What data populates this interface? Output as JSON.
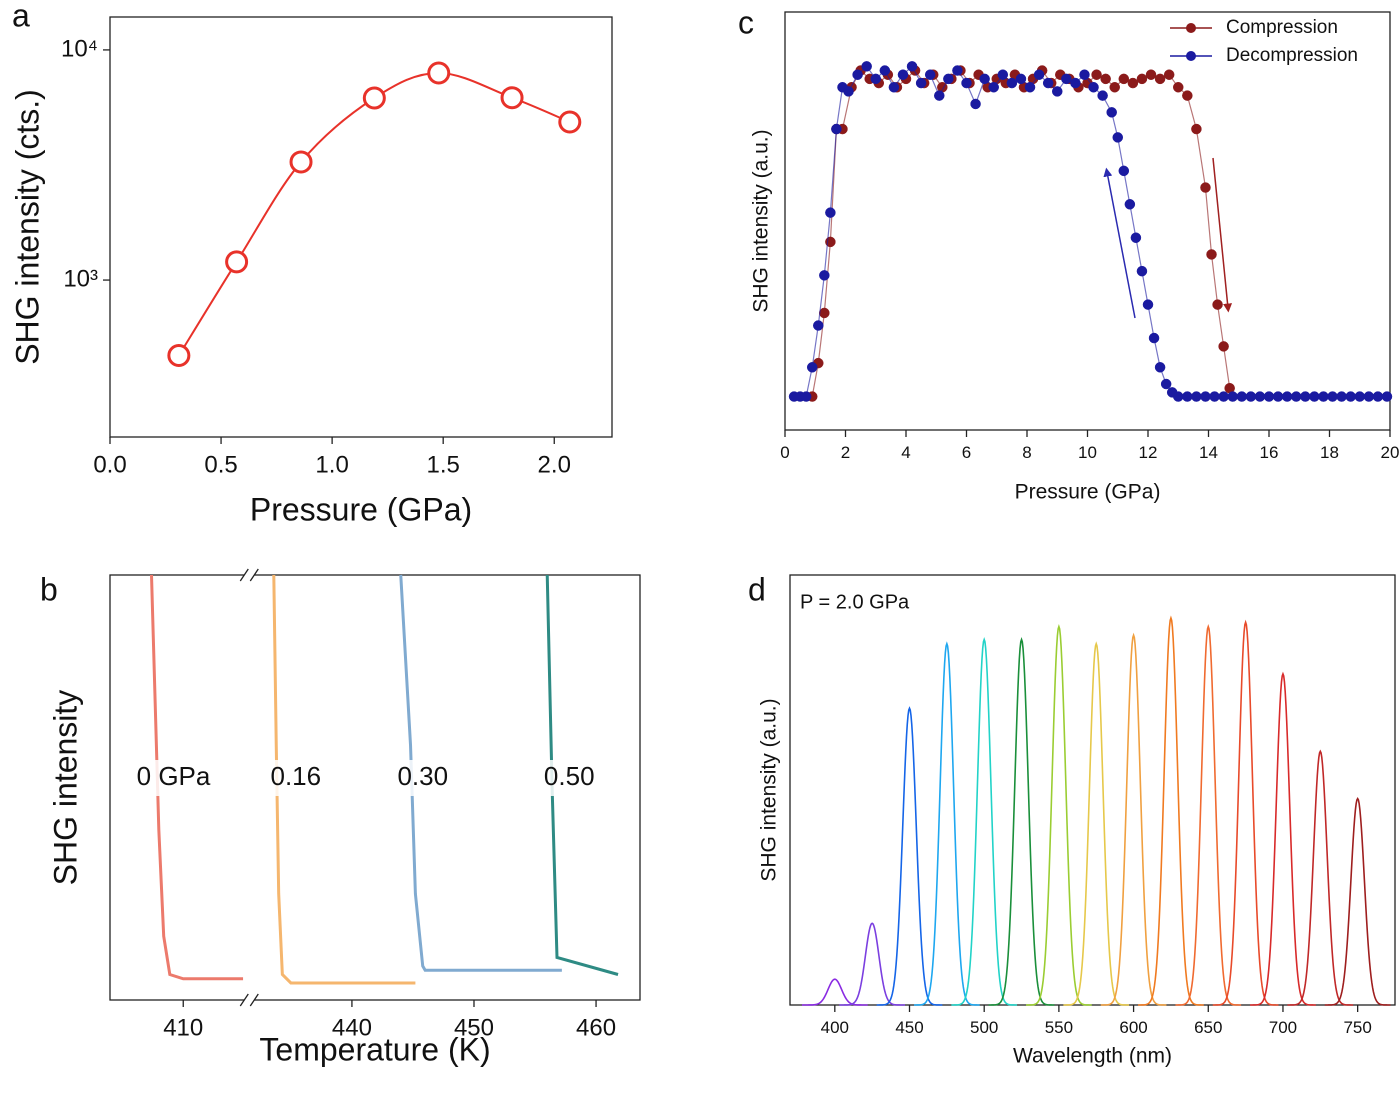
{
  "chart_data": [
    {
      "type": "line",
      "panel_label": "a",
      "xlabel": "Pressure (GPa)",
      "ylabel": "SHG intensity (cts.)",
      "log_y": true,
      "smooth": true,
      "marker": "open",
      "xlim": [
        0,
        2.26
      ],
      "xticks": [
        {
          "value": 0,
          "label": "0.0"
        },
        0.5,
        {
          "value": 1,
          "label": "1.0"
        },
        1.5,
        {
          "value": 2,
          "label": "2.0"
        }
      ],
      "ylim": [
        208,
        13900
      ],
      "yticks": [
        {
          "value": 1000,
          "label": "10³"
        },
        {
          "value": 10000,
          "label": "10⁴"
        }
      ],
      "x": [
        0.31,
        0.57,
        0.86,
        1.19,
        1.48,
        1.81,
        2.07
      ],
      "series": [
        {
          "color": "#e8322a",
          "values": [
            470,
            1200,
            3260,
            6180,
            7940,
            6200,
            4860
          ]
        }
      ]
    },
    {
      "type": "line",
      "panel_label": "b",
      "xlabel": "Temperature (K)",
      "ylabel": "SHG intensity",
      "legend": "inline",
      "xlim": [
        404,
        463.6
      ],
      "xbreak": [
        415,
        432
      ],
      "xticks": [
        410,
        440,
        450,
        460
      ],
      "ylim": [
        0,
        1
      ],
      "series": [
        {
          "name": "0 GPa",
          "color": "#ec7a6c",
          "x": [
            407.4,
            407.7,
            408.0,
            408.4,
            408.9,
            410.0,
            414.9
          ],
          "values": [
            1.0,
            0.7,
            0.4,
            0.15,
            0.06,
            0.05,
            0.05
          ]
        },
        {
          "name": "0.16",
          "color": "#f5b66e",
          "x": [
            433.6,
            433.8,
            434.0,
            434.3,
            435.0,
            445.2
          ],
          "values": [
            1.0,
            0.6,
            0.25,
            0.06,
            0.04,
            0.04
          ]
        },
        {
          "name": "0.30",
          "color": "#80aad0",
          "x": [
            444.0,
            444.8,
            445.2,
            445.8,
            446.0,
            457.2
          ],
          "values": [
            1.0,
            0.6,
            0.25,
            0.08,
            0.07,
            0.07
          ]
        },
        {
          "name": "0.50",
          "color": "#2e8b84",
          "x": [
            456.0,
            456.4,
            456.8,
            461.8
          ],
          "values": [
            1.0,
            0.5,
            0.1,
            0.06
          ]
        }
      ]
    },
    {
      "type": "line",
      "panel_label": "c",
      "xlabel": "Pressure (GPa)",
      "ylabel": "SHG intensity (a.u.)",
      "legend": "upper right",
      "marker": "filled",
      "xlim": [
        0,
        20
      ],
      "xticks": [
        0,
        2,
        4,
        6,
        8,
        10,
        12,
        14,
        16,
        18,
        20
      ],
      "ylim": [
        0,
        1
      ],
      "series": [
        {
          "name": "Compression",
          "color": "#8b1a1a",
          "x": [
            0.9,
            1.1,
            1.3,
            1.5,
            1.7,
            1.9,
            2.2,
            2.5,
            2.8,
            3.1,
            3.4,
            3.7,
            4.0,
            4.3,
            4.6,
            4.9,
            5.2,
            5.5,
            5.8,
            6.1,
            6.4,
            6.7,
            7.0,
            7.3,
            7.6,
            7.9,
            8.2,
            8.5,
            8.8,
            9.1,
            9.4,
            9.7,
            10.0,
            10.3,
            10.6,
            10.9,
            11.2,
            11.5,
            11.8,
            12.1,
            12.4,
            12.7,
            13.0,
            13.3,
            13.6,
            13.9,
            14.1,
            14.3,
            14.5,
            14.7
          ],
          "values": [
            0.08,
            0.16,
            0.28,
            0.45,
            0.72,
            0.72,
            0.82,
            0.86,
            0.84,
            0.83,
            0.85,
            0.82,
            0.84,
            0.86,
            0.83,
            0.85,
            0.82,
            0.84,
            0.86,
            0.83,
            0.85,
            0.82,
            0.84,
            0.83,
            0.85,
            0.82,
            0.84,
            0.86,
            0.83,
            0.85,
            0.84,
            0.82,
            0.83,
            0.85,
            0.84,
            0.82,
            0.84,
            0.83,
            0.84,
            0.85,
            0.84,
            0.85,
            0.82,
            0.8,
            0.72,
            0.58,
            0.42,
            0.3,
            0.2,
            0.1
          ]
        },
        {
          "name": "Decompression",
          "color": "#1a1aa0",
          "x": [
            0.3,
            0.5,
            0.7,
            0.9,
            1.1,
            1.3,
            1.5,
            1.7,
            1.9,
            2.1,
            2.4,
            2.7,
            3.0,
            3.3,
            3.6,
            3.9,
            4.2,
            4.5,
            4.8,
            5.1,
            5.4,
            5.7,
            6.0,
            6.3,
            6.6,
            6.9,
            7.2,
            7.5,
            7.8,
            8.1,
            8.4,
            8.7,
            9.0,
            9.3,
            9.6,
            9.9,
            10.2,
            10.5,
            10.8,
            11.0,
            11.2,
            11.4,
            11.6,
            11.8,
            12.0,
            12.2,
            12.4,
            12.6,
            12.8,
            13.0,
            13.3,
            13.6,
            13.9,
            14.2,
            14.5,
            14.8,
            15.1,
            15.4,
            15.7,
            16.0,
            16.3,
            16.6,
            16.9,
            17.2,
            17.5,
            17.8,
            18.1,
            18.4,
            18.7,
            19.0,
            19.3,
            19.6,
            19.9
          ],
          "values": [
            0.08,
            0.08,
            0.08,
            0.15,
            0.25,
            0.37,
            0.52,
            0.72,
            0.82,
            0.81,
            0.85,
            0.87,
            0.84,
            0.86,
            0.82,
            0.85,
            0.87,
            0.83,
            0.85,
            0.8,
            0.84,
            0.86,
            0.83,
            0.78,
            0.84,
            0.82,
            0.85,
            0.83,
            0.84,
            0.82,
            0.85,
            0.83,
            0.81,
            0.84,
            0.83,
            0.85,
            0.82,
            0.8,
            0.76,
            0.7,
            0.62,
            0.54,
            0.46,
            0.38,
            0.3,
            0.22,
            0.15,
            0.11,
            0.09,
            0.08,
            0.08,
            0.08,
            0.08,
            0.08,
            0.08,
            0.08,
            0.08,
            0.08,
            0.08,
            0.08,
            0.08,
            0.08,
            0.08,
            0.08,
            0.08,
            0.08,
            0.08,
            0.08,
            0.08,
            0.08,
            0.08,
            0.08,
            0.08
          ]
        }
      ]
    },
    {
      "type": "spectrum",
      "panel_label": "d",
      "xlabel": "Wavelength (nm)",
      "ylabel": "SHG intensity (a.u.)",
      "annotation": "P = 2.0 GPa",
      "xlim": [
        370,
        775
      ],
      "xticks": [
        400,
        450,
        500,
        550,
        600,
        650,
        700,
        750
      ],
      "ylim": [
        0,
        1
      ],
      "x": [
        400,
        425,
        450,
        475,
        500,
        525,
        550,
        575,
        600,
        625,
        650,
        675,
        700,
        725,
        750
      ],
      "values": [
        0.06,
        0.19,
        0.69,
        0.84,
        0.85,
        0.85,
        0.88,
        0.84,
        0.86,
        0.9,
        0.88,
        0.89,
        0.77,
        0.59,
        0.48
      ],
      "colors": [
        "#8a2be2",
        "#7b3fe0",
        "#1565e8",
        "#1ea7f0",
        "#22d3c8",
        "#1a8f3a",
        "#9acd32",
        "#e6c84a",
        "#f0a040",
        "#f07a20",
        "#f06a30",
        "#e84a2a",
        "#d82a2a",
        "#c02828",
        "#9e1e1e"
      ]
    }
  ]
}
